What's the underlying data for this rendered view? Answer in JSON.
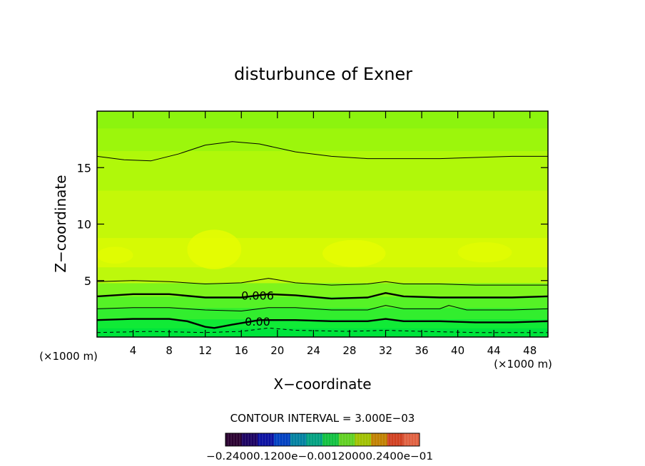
{
  "chart_data": {
    "type": "heatmap",
    "title": "disturbunce of Exner",
    "xlabel": "X−coordinate",
    "ylabel": "Z−coordinate",
    "x_unit_left": "(×1000 m)",
    "x_unit_right": "(×1000 m)",
    "xlim": [
      0,
      50
    ],
    "ylim": [
      0,
      20
    ],
    "x_ticks": [
      {
        "value": 4,
        "label": "4"
      },
      {
        "value": 8,
        "label": "8"
      },
      {
        "value": 12,
        "label": "12"
      },
      {
        "value": 16,
        "label": "16"
      },
      {
        "value": 20,
        "label": "20"
      },
      {
        "value": 24,
        "label": "24"
      },
      {
        "value": 28,
        "label": "28"
      },
      {
        "value": 32,
        "label": "32"
      },
      {
        "value": 36,
        "label": "36"
      },
      {
        "value": 40,
        "label": "40"
      },
      {
        "value": 44,
        "label": "44"
      },
      {
        "value": 48,
        "label": "48"
      }
    ],
    "y_ticks": [
      {
        "value": 5,
        "label": "5"
      },
      {
        "value": 10,
        "label": "10"
      },
      {
        "value": 15,
        "label": "15"
      }
    ],
    "contour_interval_text": "CONTOUR INTERVAL = 3.000E−03",
    "contour_labels": [
      {
        "text": "0.006",
        "x": 17.8,
        "z": 3.7
      },
      {
        "text": "0.00",
        "x": 17.8,
        "z": 1.4
      }
    ],
    "bands": [
      {
        "z_bottom": 0.0,
        "z_top": 0.8,
        "color": "#00e43c"
      },
      {
        "z_bottom": 0.8,
        "z_top": 1.6,
        "color": "#10ea36"
      },
      {
        "z_bottom": 1.6,
        "z_top": 2.6,
        "color": "#32ee2e"
      },
      {
        "z_bottom": 2.6,
        "z_top": 3.6,
        "color": "#55f226"
      },
      {
        "z_bottom": 3.6,
        "z_top": 4.8,
        "color": "#7ef41c"
      },
      {
        "z_bottom": 4.8,
        "z_top": 6.2,
        "color": "#bdf80c"
      },
      {
        "z_bottom": 6.2,
        "z_top": 8.8,
        "color": "#d6fa04"
      },
      {
        "z_bottom": 8.8,
        "z_top": 13.0,
        "color": "#c4f808"
      },
      {
        "z_bottom": 13.0,
        "z_top": 16.5,
        "color": "#b0f80a"
      },
      {
        "z_bottom": 16.5,
        "z_top": 18.5,
        "color": "#9cf60c"
      },
      {
        "z_bottom": 18.5,
        "z_top": 20.0,
        "color": "#8cf40e"
      }
    ],
    "highlights": [
      {
        "x": [
          10,
          16
        ],
        "z": [
          6.0,
          9.5
        ],
        "color": "#e6fc02"
      },
      {
        "x": [
          25,
          32
        ],
        "z": [
          6.2,
          8.6
        ],
        "color": "#e6fc02"
      },
      {
        "x": [
          0,
          4
        ],
        "z": [
          6.5,
          8.0
        ],
        "color": "#e2fc02"
      },
      {
        "x": [
          40,
          46
        ],
        "z": [
          6.6,
          8.4
        ],
        "color": "#e2fc02"
      }
    ],
    "contours": [
      {
        "style": "thin",
        "points": [
          [
            0,
            16.0
          ],
          [
            3,
            15.7
          ],
          [
            6,
            15.6
          ],
          [
            9,
            16.2
          ],
          [
            12,
            17.0
          ],
          [
            15,
            17.3
          ],
          [
            18,
            17.1
          ],
          [
            22,
            16.4
          ],
          [
            26,
            16.0
          ],
          [
            30,
            15.8
          ],
          [
            34,
            15.8
          ],
          [
            38,
            15.8
          ],
          [
            42,
            15.9
          ],
          [
            46,
            16.0
          ],
          [
            50,
            16.0
          ]
        ]
      },
      {
        "style": "thin",
        "points": [
          [
            0,
            4.9
          ],
          [
            4,
            5.0
          ],
          [
            8,
            4.9
          ],
          [
            12,
            4.7
          ],
          [
            16,
            4.8
          ],
          [
            19,
            5.2
          ],
          [
            22,
            4.8
          ],
          [
            26,
            4.6
          ],
          [
            30,
            4.7
          ],
          [
            32,
            4.9
          ],
          [
            34,
            4.7
          ],
          [
            38,
            4.7
          ],
          [
            42,
            4.6
          ],
          [
            46,
            4.6
          ],
          [
            50,
            4.6
          ]
        ]
      },
      {
        "style": "bold",
        "points": [
          [
            0,
            3.6
          ],
          [
            4,
            3.8
          ],
          [
            8,
            3.8
          ],
          [
            12,
            3.5
          ],
          [
            16,
            3.5
          ],
          [
            19,
            3.8
          ],
          [
            22,
            3.7
          ],
          [
            26,
            3.4
          ],
          [
            30,
            3.5
          ],
          [
            32,
            3.9
          ],
          [
            34,
            3.6
          ],
          [
            38,
            3.5
          ],
          [
            42,
            3.5
          ],
          [
            46,
            3.5
          ],
          [
            50,
            3.6
          ]
        ]
      },
      {
        "style": "thin",
        "points": [
          [
            0,
            2.5
          ],
          [
            4,
            2.6
          ],
          [
            8,
            2.6
          ],
          [
            12,
            2.4
          ],
          [
            16,
            2.3
          ],
          [
            19,
            2.6
          ],
          [
            22,
            2.6
          ],
          [
            26,
            2.4
          ],
          [
            30,
            2.4
          ],
          [
            32,
            2.8
          ],
          [
            34,
            2.5
          ],
          [
            38,
            2.5
          ],
          [
            39,
            2.8
          ],
          [
            41,
            2.4
          ],
          [
            46,
            2.4
          ],
          [
            50,
            2.5
          ]
        ]
      },
      {
        "style": "bold",
        "points": [
          [
            0,
            1.5
          ],
          [
            4,
            1.6
          ],
          [
            8,
            1.6
          ],
          [
            10,
            1.4
          ],
          [
            12,
            0.9
          ],
          [
            13,
            0.8
          ],
          [
            15,
            1.1
          ],
          [
            18,
            1.5
          ],
          [
            22,
            1.5
          ],
          [
            26,
            1.4
          ],
          [
            30,
            1.4
          ],
          [
            32,
            1.6
          ],
          [
            34,
            1.4
          ],
          [
            38,
            1.4
          ],
          [
            42,
            1.3
          ],
          [
            46,
            1.3
          ],
          [
            50,
            1.4
          ]
        ]
      },
      {
        "style": "dashed",
        "points": [
          [
            0,
            0.4
          ],
          [
            6,
            0.5
          ],
          [
            12,
            0.4
          ],
          [
            16,
            0.5
          ],
          [
            19,
            0.8
          ],
          [
            22,
            0.6
          ],
          [
            28,
            0.5
          ],
          [
            32,
            0.6
          ],
          [
            36,
            0.5
          ],
          [
            42,
            0.4
          ],
          [
            50,
            0.4
          ]
        ]
      }
    ],
    "colorbar": {
      "tick_labels": [
        "−0.24",
        "−0.2",
        "−0.1",
        "−0.0",
        "0.0",
        "0.1",
        "0.2",
        "0.24"
      ],
      "label_text": "−0.24000.1200e−0.00120000.2400e−01",
      "colors": [
        "#2a0030",
        "#1a0060",
        "#0a10a0",
        "#0040c0",
        "#0080a0",
        "#00a080",
        "#10c040",
        "#60d020",
        "#a0c000",
        "#c08000",
        "#d04020",
        "#e06040"
      ]
    }
  }
}
